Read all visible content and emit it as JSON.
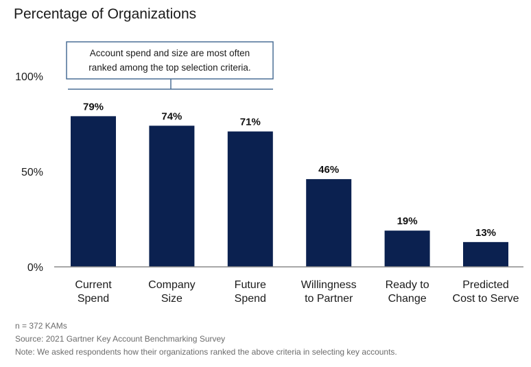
{
  "chart_data": {
    "type": "bar",
    "title": "Percentage of Organizations",
    "categories": [
      [
        "Current",
        "Spend"
      ],
      [
        "Company",
        "Size"
      ],
      [
        "Future",
        "Spend"
      ],
      [
        "Willingness",
        "to Partner"
      ],
      [
        "Ready to",
        "Change"
      ],
      [
        "Predicted",
        "Cost to Serve"
      ]
    ],
    "values": [
      79,
      74,
      71,
      46,
      19,
      13
    ],
    "value_labels": [
      "79%",
      "74%",
      "71%",
      "46%",
      "19%",
      "13%"
    ],
    "ylim": [
      0,
      100
    ],
    "yticks": [
      {
        "value": 0,
        "label": "0%"
      },
      {
        "value": 50,
        "label": "50%"
      },
      {
        "value": 100,
        "label": "100%"
      }
    ],
    "grid": false,
    "bar_color": "#0b2150",
    "annotation": {
      "lines": [
        "Account spend and size are most often",
        "ranked among the top selection criteria."
      ],
      "spans_categories": [
        0,
        2
      ],
      "border_color": "#4a6f95"
    }
  },
  "footnotes": [
    "n = 372 KAMs",
    "Source: 2021 Gartner Key Account Benchmarking Survey",
    "Note: We asked respondents how their organizations ranked the above criteria in selecting key accounts."
  ]
}
